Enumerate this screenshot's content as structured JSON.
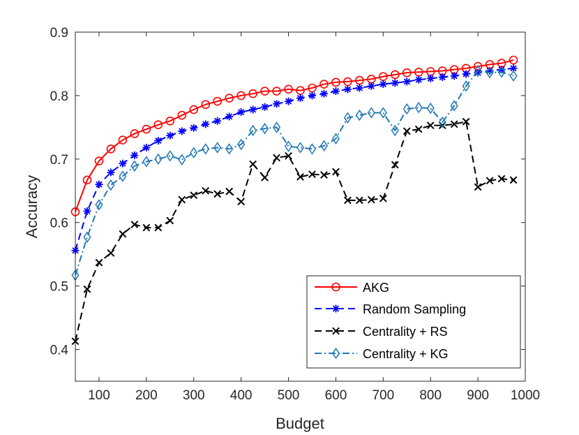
{
  "chart_data": {
    "type": "line",
    "title": "",
    "xlabel": "Budget",
    "ylabel": "Accuracy",
    "xlim": [
      50,
      1000
    ],
    "ylim": [
      0.35,
      0.9
    ],
    "xticks": [
      100,
      200,
      300,
      400,
      500,
      600,
      700,
      800,
      900,
      1000
    ],
    "yticks": [
      0.4,
      0.5,
      0.6,
      0.7,
      0.8,
      0.9
    ],
    "xtick_labels": [
      "100",
      "200",
      "300",
      "400",
      "500",
      "600",
      "700",
      "800",
      "900",
      "1000"
    ],
    "ytick_labels": [
      "0.4",
      "0.5",
      "0.6",
      "0.7",
      "0.8",
      "0.9"
    ],
    "grid": false,
    "legend_position": "bottom-right",
    "x": [
      50,
      75,
      100,
      125,
      150,
      175,
      200,
      225,
      250,
      275,
      300,
      325,
      350,
      375,
      400,
      425,
      450,
      475,
      500,
      525,
      550,
      575,
      600,
      625,
      650,
      675,
      700,
      725,
      750,
      775,
      800,
      825,
      850,
      875,
      900,
      925,
      950,
      975
    ],
    "series": [
      {
        "name": "AKG",
        "color": "#ff0000",
        "dash": "solid",
        "marker": "circle",
        "values": [
          0.617,
          0.667,
          0.697,
          0.716,
          0.73,
          0.74,
          0.747,
          0.754,
          0.76,
          0.769,
          0.778,
          0.786,
          0.791,
          0.796,
          0.8,
          0.803,
          0.807,
          0.807,
          0.81,
          0.808,
          0.812,
          0.818,
          0.821,
          0.822,
          0.824,
          0.826,
          0.83,
          0.833,
          0.836,
          0.837,
          0.838,
          0.839,
          0.841,
          0.843,
          0.846,
          0.849,
          0.851,
          0.856
        ]
      },
      {
        "name": "Random Sampling",
        "color": "#0000ff",
        "dash": "dashed",
        "marker": "asterisk",
        "values": [
          0.556,
          0.618,
          0.66,
          0.679,
          0.693,
          0.706,
          0.718,
          0.729,
          0.737,
          0.744,
          0.749,
          0.755,
          0.76,
          0.767,
          0.774,
          0.778,
          0.782,
          0.787,
          0.791,
          0.796,
          0.8,
          0.803,
          0.807,
          0.81,
          0.812,
          0.815,
          0.818,
          0.82,
          0.822,
          0.825,
          0.827,
          0.829,
          0.831,
          0.834,
          0.836,
          0.839,
          0.841,
          0.843
        ]
      },
      {
        "name": "Centrality + RS",
        "color": "#000000",
        "dash": "dashed",
        "marker": "x",
        "values": [
          0.413,
          0.495,
          0.537,
          0.552,
          0.582,
          0.597,
          0.592,
          0.592,
          0.603,
          0.636,
          0.643,
          0.65,
          0.645,
          0.649,
          0.633,
          0.692,
          0.671,
          0.702,
          0.705,
          0.672,
          0.676,
          0.675,
          0.68,
          0.635,
          0.635,
          0.636,
          0.638,
          0.691,
          0.744,
          0.747,
          0.753,
          0.753,
          0.755,
          0.759,
          0.656,
          0.666,
          0.669,
          0.667
        ]
      },
      {
        "name": "Centrality + KG",
        "color": "#1f77b4",
        "dash": "dashdot",
        "marker": "diamond",
        "values": [
          0.517,
          0.577,
          0.628,
          0.659,
          0.673,
          0.689,
          0.696,
          0.7,
          0.705,
          0.699,
          0.71,
          0.716,
          0.718,
          0.716,
          0.723,
          0.745,
          0.748,
          0.75,
          0.72,
          0.718,
          0.716,
          0.721,
          0.732,
          0.765,
          0.769,
          0.773,
          0.773,
          0.745,
          0.779,
          0.781,
          0.78,
          0.758,
          0.784,
          0.815,
          0.839,
          0.836,
          0.837,
          0.831
        ]
      }
    ]
  }
}
